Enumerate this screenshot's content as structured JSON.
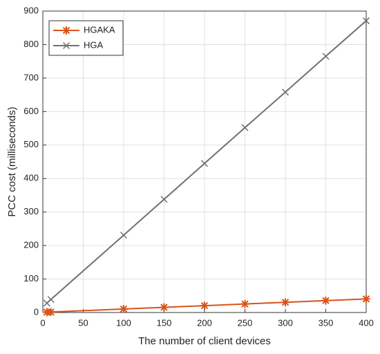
{
  "chart_data": {
    "type": "line",
    "x_label": "The number of client devices",
    "y_label": "PCC cost (milliseconds)",
    "x": [
      5,
      10,
      100,
      150,
      200,
      250,
      300,
      350,
      400
    ],
    "series": [
      {
        "name": "HGAKA",
        "color": "#d95319",
        "marker": "asterisk",
        "values": [
          1,
          1.5,
          10.5,
          15.5,
          20.5,
          25.5,
          30.5,
          35.5,
          40.5
        ]
      },
      {
        "name": "HGA",
        "color": "#707070",
        "marker": "x",
        "values": [
          28,
          39,
          231,
          338,
          445,
          552,
          658,
          765,
          871
        ]
      }
    ],
    "xlim": [
      0,
      400
    ],
    "xticks": [
      0,
      50,
      100,
      150,
      200,
      250,
      300,
      350,
      400
    ],
    "ylim": [
      0,
      900
    ],
    "yticks": [
      0,
      100,
      200,
      300,
      400,
      500,
      600,
      700,
      800,
      900
    ],
    "grid": true,
    "legend": "upper left"
  }
}
